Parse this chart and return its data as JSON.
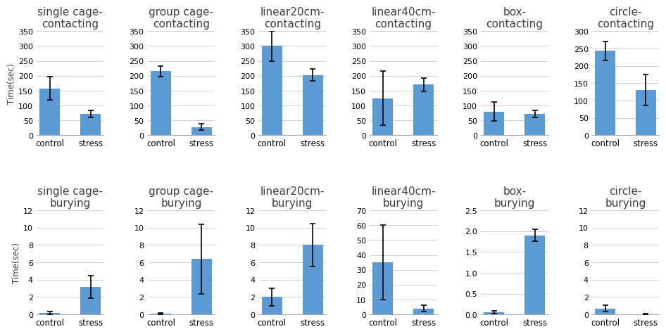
{
  "subplots": [
    {
      "title": "single cage-\ncontacting",
      "ylim": [
        0,
        350
      ],
      "yticks": [
        0,
        50,
        100,
        150,
        200,
        250,
        300,
        350
      ],
      "bars": [
        {
          "label": "control",
          "value": 158,
          "error": 40
        },
        {
          "label": "stress",
          "value": 72,
          "error": 12
        }
      ]
    },
    {
      "title": "group cage-\ncontacting",
      "ylim": [
        0,
        350
      ],
      "yticks": [
        0,
        50,
        100,
        150,
        200,
        250,
        300,
        350
      ],
      "bars": [
        {
          "label": "control",
          "value": 215,
          "error": 18
        },
        {
          "label": "stress",
          "value": 28,
          "error": 10
        }
      ]
    },
    {
      "title": "linear20cm-\ncontacting",
      "ylim": [
        0,
        350
      ],
      "yticks": [
        0,
        50,
        100,
        150,
        200,
        250,
        300,
        350
      ],
      "bars": [
        {
          "label": "control",
          "value": 300,
          "error": 50
        },
        {
          "label": "stress",
          "value": 203,
          "error": 20
        }
      ]
    },
    {
      "title": "linear40cm-\ncontacting",
      "ylim": [
        0,
        350
      ],
      "yticks": [
        0,
        50,
        100,
        150,
        200,
        250,
        300,
        350
      ],
      "bars": [
        {
          "label": "control",
          "value": 125,
          "error": 90
        },
        {
          "label": "stress",
          "value": 170,
          "error": 22
        }
      ]
    },
    {
      "title": "box-\ncontacting",
      "ylim": [
        0,
        350
      ],
      "yticks": [
        0,
        50,
        100,
        150,
        200,
        250,
        300,
        350
      ],
      "bars": [
        {
          "label": "control",
          "value": 80,
          "error": 32
        },
        {
          "label": "stress",
          "value": 72,
          "error": 12
        }
      ]
    },
    {
      "title": "circle-\ncontacting",
      "ylim": [
        0,
        300
      ],
      "yticks": [
        0,
        50,
        100,
        150,
        200,
        250,
        300
      ],
      "bars": [
        {
          "label": "control",
          "value": 243,
          "error": 28
        },
        {
          "label": "stress",
          "value": 130,
          "error": 45
        }
      ]
    },
    {
      "title": "single cage-\nburying",
      "ylim": [
        0,
        12
      ],
      "yticks": [
        0,
        2,
        4,
        6,
        8,
        10,
        12
      ],
      "bars": [
        {
          "label": "control",
          "value": 0.2,
          "error": 0.15
        },
        {
          "label": "stress",
          "value": 3.2,
          "error": 1.3
        }
      ]
    },
    {
      "title": "group cage-\nburying",
      "ylim": [
        0,
        12
      ],
      "yticks": [
        0,
        2,
        4,
        6,
        8,
        10,
        12
      ],
      "bars": [
        {
          "label": "control",
          "value": 0.1,
          "error": 0.05
        },
        {
          "label": "stress",
          "value": 6.4,
          "error": 4.0
        }
      ]
    },
    {
      "title": "linear20cm-\nburying",
      "ylim": [
        0,
        12
      ],
      "yticks": [
        0,
        2,
        4,
        6,
        8,
        10,
        12
      ],
      "bars": [
        {
          "label": "control",
          "value": 2.0,
          "error": 1.0
        },
        {
          "label": "stress",
          "value": 8.0,
          "error": 2.5
        }
      ]
    },
    {
      "title": "linear40cm-\nburying",
      "ylim": [
        0,
        70
      ],
      "yticks": [
        0,
        10,
        20,
        30,
        40,
        50,
        60,
        70
      ],
      "bars": [
        {
          "label": "control",
          "value": 35,
          "error": 25
        },
        {
          "label": "stress",
          "value": 4,
          "error": 2
        }
      ]
    },
    {
      "title": "box-\nburying",
      "ylim": [
        0,
        2.5
      ],
      "yticks": [
        0,
        0.5,
        1.0,
        1.5,
        2.0,
        2.5
      ],
      "bars": [
        {
          "label": "control",
          "value": 0.05,
          "error": 0.03
        },
        {
          "label": "stress",
          "value": 1.9,
          "error": 0.15
        }
      ]
    },
    {
      "title": "circle-\nburying",
      "ylim": [
        0,
        12
      ],
      "yticks": [
        0,
        2,
        4,
        6,
        8,
        10,
        12
      ],
      "bars": [
        {
          "label": "control",
          "value": 0.7,
          "error": 0.4
        },
        {
          "label": "stress",
          "value": 0.05,
          "error": 0.03
        }
      ]
    }
  ],
  "bar_color": "#5B9BD5",
  "bar_width": 0.5,
  "xlabel_fontsize": 8.5,
  "ylabel": "Time(sec)",
  "ylabel_fontsize": 8.5,
  "title_fontsize": 11,
  "tick_fontsize": 8,
  "background_color": "#ffffff",
  "grid_color": "#d0d0d0"
}
